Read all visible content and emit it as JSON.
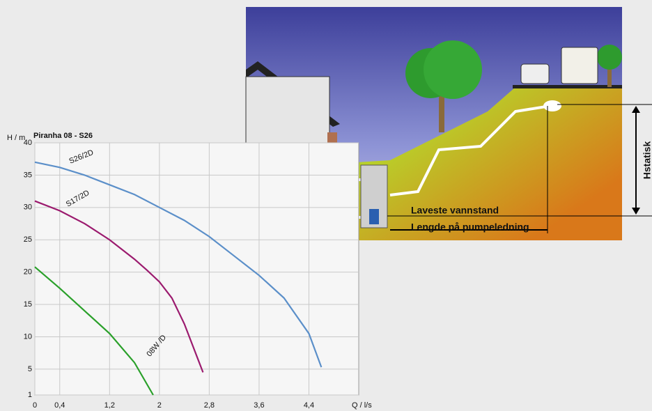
{
  "chart_data": {
    "type": "line",
    "title": "Piranha 08 - S26",
    "y_label": "H / m",
    "x_label": "Q / l/s",
    "xlim": [
      0,
      5.2
    ],
    "ylim": [
      1,
      40
    ],
    "xticks": [
      0,
      {
        "value": 0.4,
        "label": "0,4"
      },
      {
        "value": 1.2,
        "label": "1,2"
      },
      2,
      {
        "value": 2.8,
        "label": "2,8"
      },
      {
        "value": 3.6,
        "label": "3,6"
      },
      {
        "value": 4.4,
        "label": "4,4"
      }
    ],
    "yticks": [
      1,
      5,
      10,
      15,
      20,
      25,
      30,
      35,
      40
    ],
    "grid": true,
    "series": [
      {
        "name": "S26/2D",
        "color": "#5b8fc9",
        "x": [
          0,
          0.4,
          0.8,
          1.2,
          1.6,
          2.0,
          2.4,
          2.8,
          3.2,
          3.6,
          4.0,
          4.4,
          4.6
        ],
        "values": [
          37,
          36.2,
          35,
          33.5,
          32,
          30,
          28,
          25.5,
          22.5,
          19.5,
          16,
          10.5,
          5.3
        ]
      },
      {
        "name": "S17/2D",
        "color": "#9b1a6e",
        "x": [
          0,
          0.4,
          0.8,
          1.2,
          1.6,
          1.8,
          2.0,
          2.2,
          2.4,
          2.6,
          2.7
        ],
        "values": [
          31,
          29.5,
          27.5,
          25,
          22,
          20.3,
          18.5,
          16,
          12,
          7,
          4.5
        ]
      },
      {
        "name": "08W /D",
        "color": "#2aa02a",
        "x": [
          0,
          0.4,
          0.8,
          1.2,
          1.6,
          1.9
        ],
        "values": [
          20.8,
          17.5,
          14,
          10.5,
          6,
          1
        ]
      }
    ],
    "annotations": [
      "Laveste vannstand",
      "Lengde på pumpeledning",
      "Hstatisk"
    ]
  }
}
